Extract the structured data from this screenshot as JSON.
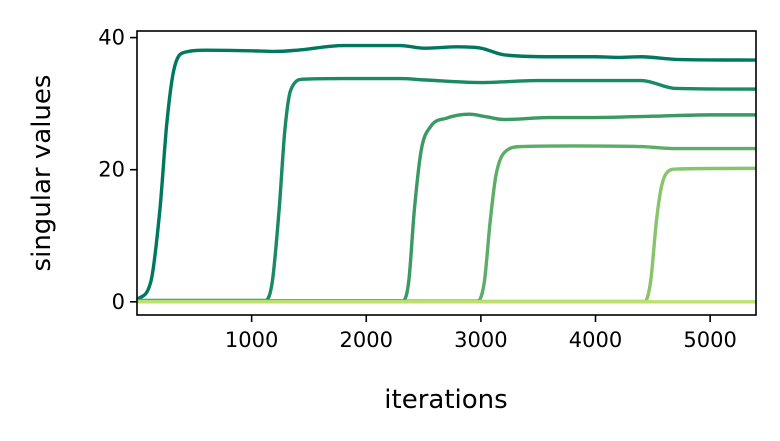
{
  "chart_data": {
    "type": "line",
    "title": "",
    "xlabel": "iterations",
    "ylabel": "singular values",
    "xlim": [
      0,
      5400
    ],
    "ylim": [
      -2,
      41
    ],
    "xticks": [
      1000,
      2000,
      3000,
      4000,
      5000
    ],
    "xtick_labels": [
      "1000",
      "2000",
      "3000",
      "4000",
      "5000"
    ],
    "yticks": [
      0,
      20,
      40
    ],
    "ytick_labels": [
      "0",
      "20",
      "40"
    ],
    "grid": false,
    "legend": "none",
    "series": [
      {
        "color": "#00785f",
        "points": [
          [
            0,
            0.3
          ],
          [
            120,
            3
          ],
          [
            200,
            14
          ],
          [
            260,
            27
          ],
          [
            320,
            35
          ],
          [
            420,
            37.8
          ],
          [
            600,
            38.1
          ],
          [
            1000,
            38
          ],
          [
            1200,
            37.9
          ],
          [
            1400,
            38.1
          ],
          [
            1800,
            38.8
          ],
          [
            2300,
            38.8
          ],
          [
            2500,
            38.4
          ],
          [
            2800,
            38.6
          ],
          [
            3000,
            38.4
          ],
          [
            3200,
            37.4
          ],
          [
            3600,
            37.1
          ],
          [
            4000,
            37.1
          ],
          [
            4200,
            37
          ],
          [
            4400,
            37.1
          ],
          [
            4700,
            36.7
          ],
          [
            5400,
            36.6
          ]
        ]
      },
      {
        "color": "#1a8a62",
        "points": [
          [
            0,
            0.2
          ],
          [
            1120,
            0.2
          ],
          [
            1180,
            3
          ],
          [
            1240,
            14
          ],
          [
            1290,
            26
          ],
          [
            1340,
            32
          ],
          [
            1450,
            33.7
          ],
          [
            1800,
            33.8
          ],
          [
            2300,
            33.8
          ],
          [
            2500,
            33.6
          ],
          [
            3000,
            33.2
          ],
          [
            3500,
            33.5
          ],
          [
            4000,
            33.5
          ],
          [
            4400,
            33.5
          ],
          [
            4700,
            32.3
          ],
          [
            5400,
            32.2
          ]
        ]
      },
      {
        "color": "#3b9a64",
        "points": [
          [
            0,
            0.15
          ],
          [
            2320,
            0.15
          ],
          [
            2370,
            3
          ],
          [
            2420,
            14
          ],
          [
            2480,
            23
          ],
          [
            2560,
            26.5
          ],
          [
            2700,
            27.8
          ],
          [
            2900,
            28.4
          ],
          [
            3050,
            28
          ],
          [
            3200,
            27.6
          ],
          [
            3600,
            27.9
          ],
          [
            4000,
            27.9
          ],
          [
            4500,
            28.1
          ],
          [
            5000,
            28.3
          ],
          [
            5400,
            28.3
          ]
        ]
      },
      {
        "color": "#5cad67",
        "points": [
          [
            0,
            0.1
          ],
          [
            2970,
            0.1
          ],
          [
            3030,
            3
          ],
          [
            3080,
            12
          ],
          [
            3130,
            19
          ],
          [
            3200,
            22.5
          ],
          [
            3350,
            23.5
          ],
          [
            3800,
            23.6
          ],
          [
            4400,
            23.5
          ],
          [
            4700,
            23.2
          ],
          [
            5400,
            23.2
          ]
        ]
      },
      {
        "color": "#87c46a",
        "points": [
          [
            0,
            0.05
          ],
          [
            4430,
            0.05
          ],
          [
            4480,
            3
          ],
          [
            4530,
            12
          ],
          [
            4570,
            17
          ],
          [
            4620,
            19.5
          ],
          [
            4700,
            20.1
          ],
          [
            5400,
            20.2
          ]
        ]
      },
      {
        "color": "#bde16f",
        "points": [
          [
            0,
            0.0
          ],
          [
            5400,
            0.0
          ]
        ]
      }
    ]
  }
}
